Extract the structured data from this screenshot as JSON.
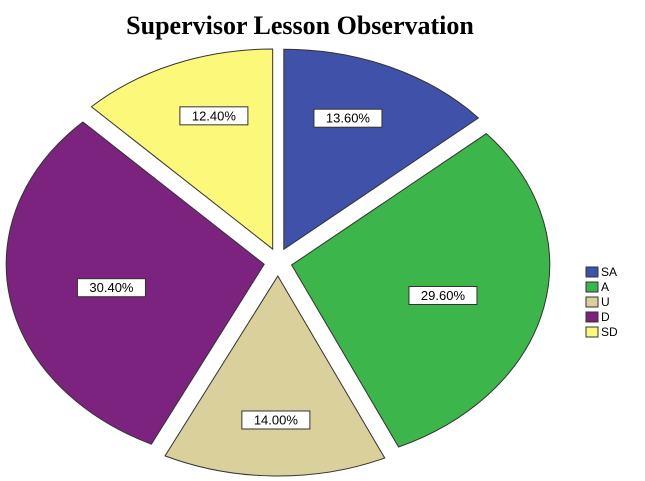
{
  "chart_data": {
    "type": "pie",
    "title": "Supervisor Lesson Observation",
    "categories": [
      "SA",
      "A",
      "U",
      "D",
      "SD"
    ],
    "values": [
      13.6,
      29.6,
      14.0,
      30.4,
      12.4
    ],
    "value_labels": [
      "13.60%",
      "29.60%",
      "14.00%",
      "30.40%",
      "12.40%"
    ],
    "colors": [
      "#3f51a8",
      "#3cb54a",
      "#d9d09c",
      "#7b237f",
      "#fcf97a"
    ],
    "legend": "right"
  }
}
